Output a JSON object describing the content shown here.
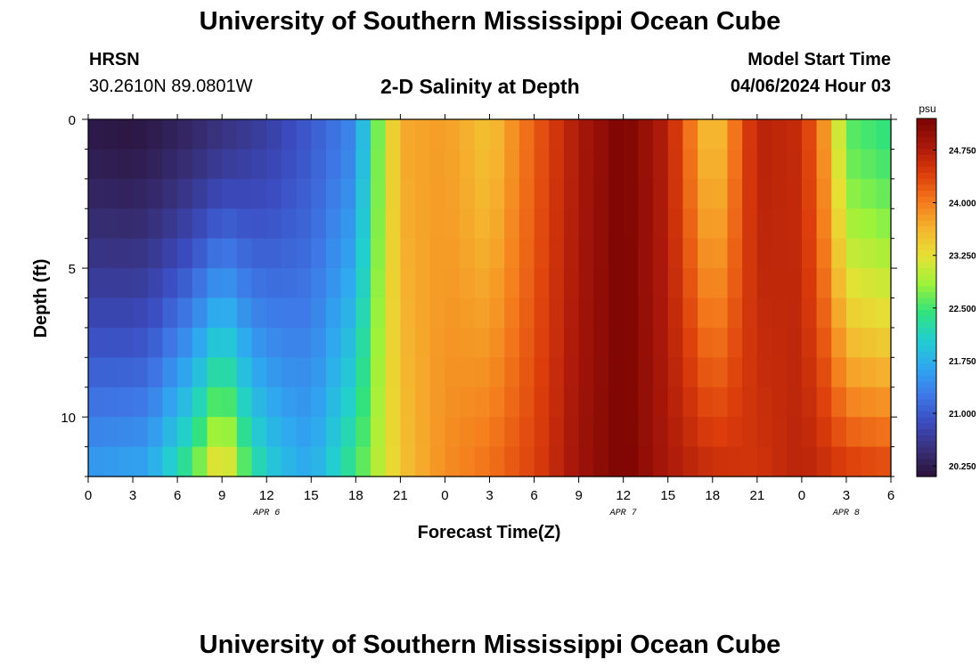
{
  "header": {
    "title": "University of Southern Mississippi Ocean Cube",
    "station": "HRSN",
    "coords": "30.2610N  89.0801W",
    "subtitle": "2-D Salinity at Depth",
    "model_label": "Model Start Time",
    "model_time": "04/06/2024 Hour 03"
  },
  "footer": {
    "title": "University of Southern Mississippi Ocean Cube"
  },
  "chart_data": {
    "type": "heatmap",
    "title": "2-D Salinity at Depth",
    "xlabel": "Forecast Time(Z)",
    "ylabel": "Depth (ft)",
    "x_range_hours": [
      0,
      54
    ],
    "y_range_ft": [
      0,
      12
    ],
    "x_ticks": [
      "0",
      "3",
      "6",
      "9",
      "12",
      "15",
      "18",
      "21",
      "0",
      "3",
      "6",
      "9",
      "12",
      "15",
      "18",
      "21",
      "0",
      "3",
      "6"
    ],
    "date_labels": [
      {
        "text": "APR 6",
        "hour": 12
      },
      {
        "text": "APR 7",
        "hour": 36
      },
      {
        "text": "APR 8",
        "hour": 51
      }
    ],
    "y_ticks": [
      0,
      5,
      10
    ],
    "colorbar": {
      "unit": "psu",
      "range": [
        20.1,
        25.2
      ],
      "ticks": [
        "20.250",
        "21.000",
        "21.750",
        "22.500",
        "23.250",
        "24.000",
        "24.750"
      ],
      "colors": [
        "#2a1238",
        "#38307a",
        "#3b4cc0",
        "#3e7ae8",
        "#2fa8f0",
        "#22cfcf",
        "#32e37a",
        "#9df23a",
        "#e5e234",
        "#f5b52f",
        "#f47a1c",
        "#dc3d0b",
        "#a9180a",
        "#7a0403"
      ]
    },
    "depth_levels_ft": [
      0,
      1,
      2,
      3,
      4,
      5,
      6,
      7,
      8,
      9,
      10,
      11,
      12
    ],
    "surface_profile": {
      "hours": [
        0,
        3,
        6,
        9,
        12,
        15,
        18,
        19,
        20,
        21,
        24,
        27,
        30,
        33,
        36,
        39,
        42,
        45,
        48,
        50,
        51,
        54
      ],
      "values": [
        20.2,
        20.15,
        20.3,
        20.5,
        20.7,
        21.0,
        21.4,
        22.3,
        23.1,
        23.7,
        23.8,
        23.5,
        24.2,
        24.8,
        25.2,
        24.7,
        23.4,
        24.7,
        24.6,
        23.6,
        22.6,
        22.4
      ]
    },
    "bottom_profile": {
      "hours": [
        0,
        4,
        7,
        9,
        11,
        13,
        15,
        18,
        21,
        24,
        27,
        30,
        33,
        36,
        39,
        42,
        45,
        48,
        51,
        54
      ],
      "values": [
        21.6,
        21.7,
        22.6,
        23.6,
        22.4,
        21.9,
        21.7,
        22.5,
        23.5,
        23.9,
        24.1,
        24.4,
        24.9,
        25.2,
        24.8,
        24.6,
        24.5,
        24.7,
        24.5,
        24.4
      ]
    }
  }
}
